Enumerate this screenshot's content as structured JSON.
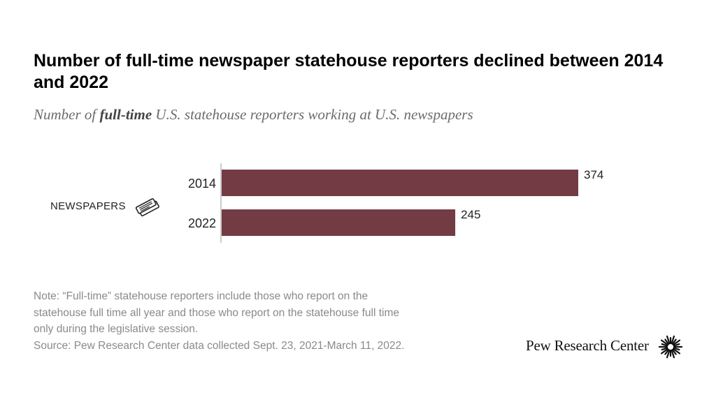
{
  "title": "Number of full-time newspaper statehouse reporters declined between 2014 and 2022",
  "subtitle": {
    "prefix": "Number of ",
    "emphasis": "full-time",
    "suffix": " U.S. statehouse reporters working at U.S. newspapers"
  },
  "category_label": "NEWSPAPERS",
  "icon": "newspaper-icon",
  "notes": {
    "lines": [
      "Note: “Full-time” statehouse reporters include those who report on the",
      "statehouse full time all year and those who report on the statehouse full time",
      "only during the legislative session."
    ],
    "source": "Source: Pew Research Center data collected Sept. 23, 2021-March 11, 2022."
  },
  "brand": {
    "name": "Pew Research Center",
    "logo": "pew-sunburst-logo"
  },
  "colors": {
    "bar": "#733c45",
    "text": "#222222",
    "note": "#8a8a8a"
  },
  "chart_data": {
    "type": "bar",
    "orientation": "horizontal",
    "categories": [
      "2014",
      "2022"
    ],
    "values": [
      374,
      245
    ],
    "value_labels": [
      "374",
      "245"
    ],
    "title": "Number of full-time newspaper statehouse reporters declined between 2014 and 2022",
    "xlabel": "",
    "ylabel": "",
    "xlim": [
      0,
      374
    ],
    "grid": false,
    "legend": "none"
  }
}
